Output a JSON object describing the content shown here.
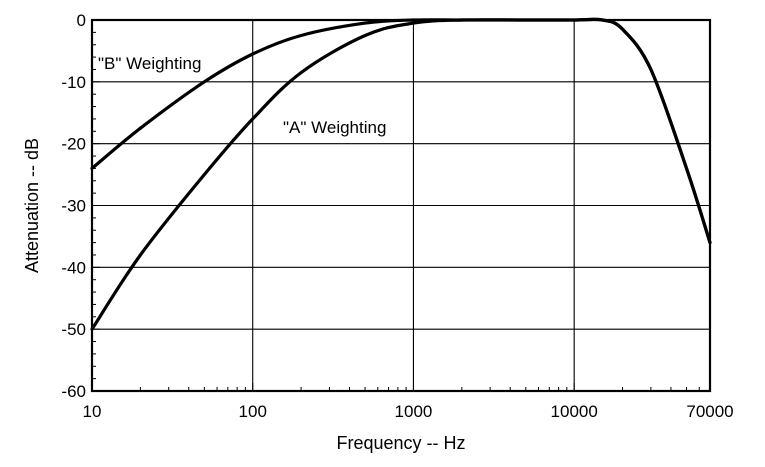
{
  "chart_data": {
    "type": "line",
    "title": "",
    "xlabel": "Frequency -- Hz",
    "ylabel": "Attenuation -- dB",
    "x_scale": "log",
    "xlim": [
      10,
      70000
    ],
    "ylim": [
      -60,
      0
    ],
    "x_ticks": [
      10,
      100,
      1000,
      10000,
      70000
    ],
    "x_tick_labels": [
      "10",
      "100",
      "1000",
      "10000",
      "70000"
    ],
    "y_ticks": [
      0,
      -10,
      -20,
      -30,
      -40,
      -50,
      -60
    ],
    "y_tick_labels": [
      "0",
      "-10",
      "-20",
      "-30",
      "-40",
      "-50",
      "-60"
    ],
    "grid": true,
    "legend": "none",
    "series": [
      {
        "name": "\"B\" Weighting",
        "x": [
          10,
          20,
          50,
          100,
          200,
          500,
          1000,
          2000,
          5000,
          10000,
          15000,
          20000,
          30000,
          50000,
          70000
        ],
        "y": [
          -24,
          -17.5,
          -10,
          -5.5,
          -2.5,
          -0.5,
          0,
          0,
          0,
          0,
          0,
          -1.5,
          -8,
          -24,
          -36
        ]
      },
      {
        "name": "\"A\" Weighting",
        "x": [
          10,
          20,
          50,
          100,
          200,
          500,
          1000,
          2000,
          5000,
          10000,
          15000,
          20000,
          30000,
          50000,
          70000
        ],
        "y": [
          -50,
          -38,
          -25,
          -16,
          -8.5,
          -2.5,
          -0.5,
          0,
          0,
          0,
          0,
          -1.5,
          -8,
          -24,
          -36
        ]
      }
    ],
    "annotations": [
      {
        "text": "\"B\" Weighting",
        "series": 0
      },
      {
        "text": "\"A\" Weighting",
        "series": 1
      }
    ]
  }
}
